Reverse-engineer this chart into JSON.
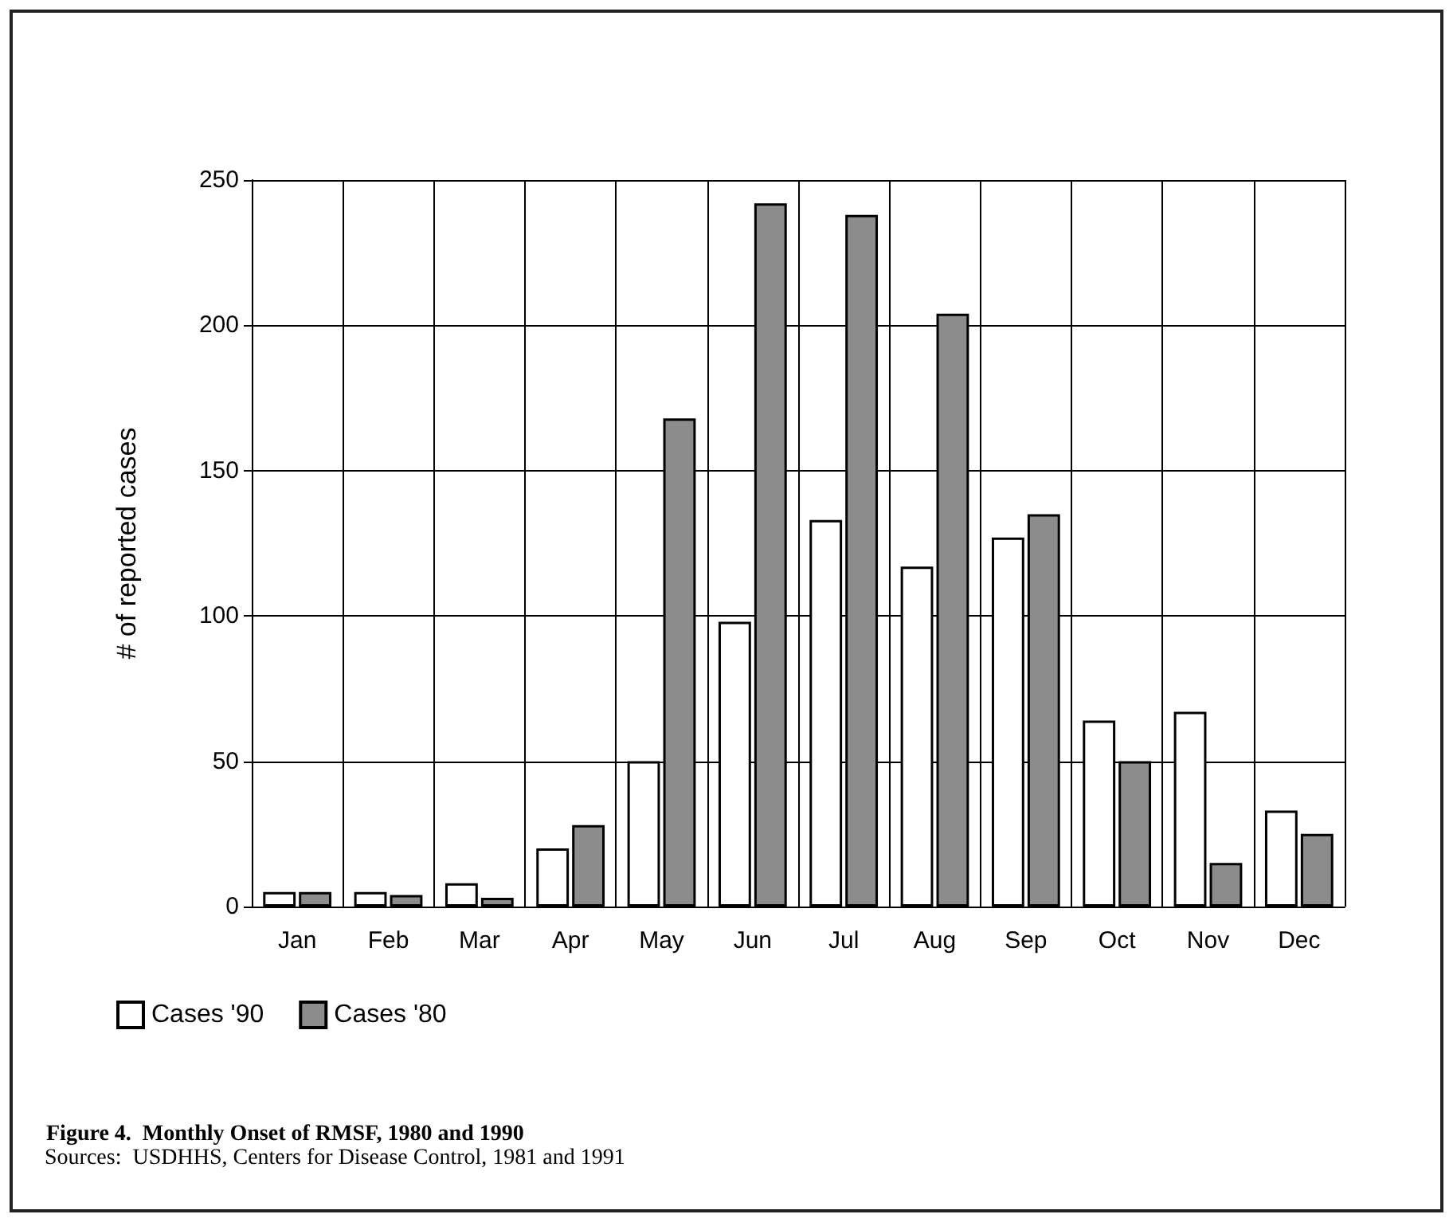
{
  "chart_data": {
    "type": "bar",
    "title": "Figure 4.  Monthly Onset of RMSF, 1980 and 1990",
    "annotations": [
      "Sources:  USDHHS, Centers for Disease Control, 1981 and 1991"
    ],
    "ylabel": "# of reported cases",
    "categories": [
      "Jan",
      "Feb",
      "Mar",
      "Apr",
      "May",
      "Jun",
      "Jul",
      "Aug",
      "Sep",
      "Oct",
      "Nov",
      "Dec"
    ],
    "series": [
      {
        "name": "Cases '90",
        "color": "#ffffff",
        "values": [
          5,
          5,
          8,
          20,
          50,
          98,
          133,
          117,
          127,
          64,
          67,
          33
        ]
      },
      {
        "name": "Cases '80",
        "color": "#8c8c8c",
        "values": [
          5,
          4,
          3,
          28,
          168,
          242,
          238,
          204,
          135,
          50,
          15,
          25
        ]
      }
    ],
    "ylim": [
      0,
      250
    ],
    "yticks": [
      0,
      50,
      100,
      150,
      200,
      250
    ],
    "grid": true,
    "legend": "bottom left"
  }
}
